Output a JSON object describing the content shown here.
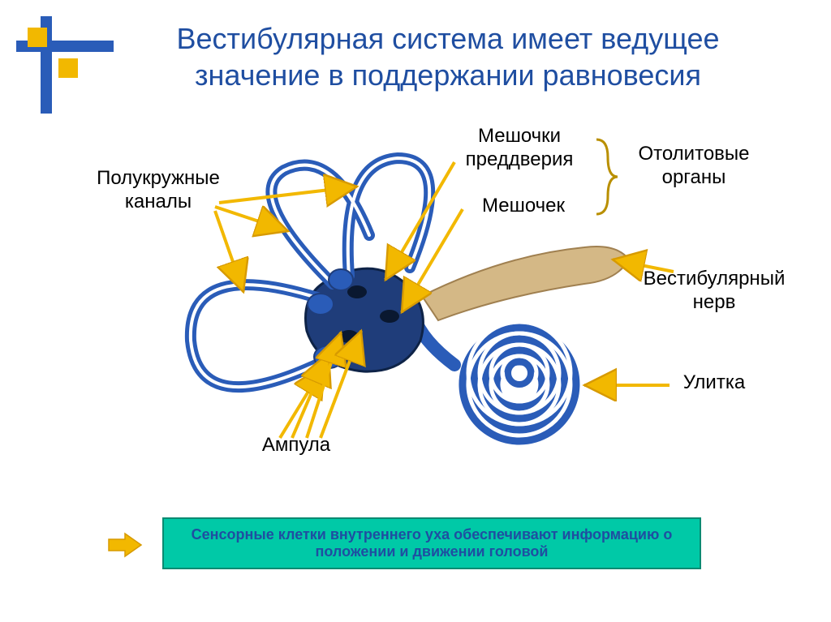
{
  "title": "Вестибулярная система имеет ведущее значение в поддержании равновесия",
  "title_color": "#1f4ea1",
  "labels": {
    "semicircular": "Полукружные\nканалы",
    "sacs": "Мешочки\nпреддверия",
    "saccule": "Мешочек",
    "otolith": "Отолитовые\nорганы",
    "nerve": "Вестибулярный\nнерв",
    "cochlea": "Улитка",
    "ampulla": "Ампула"
  },
  "banner": {
    "text": "Сенсорные клетки внутреннего уха обеспечивают информацию о положении и движении головой",
    "bg": "#00c9a7",
    "border": "#0a8a72",
    "text_color": "#1f4ea1"
  },
  "colors": {
    "arrow": "#f2b800",
    "arrow_outline": "#d79a00",
    "diagram_stroke": "#2a5cb8",
    "diagram_fill": "#cfe4ff",
    "diagram_dark": "#1f3d7a",
    "nerve": "#d4b886",
    "brace": "#b98f00",
    "corner_yellow": "#f2b800",
    "corner_blue": "#2a5cb8"
  }
}
